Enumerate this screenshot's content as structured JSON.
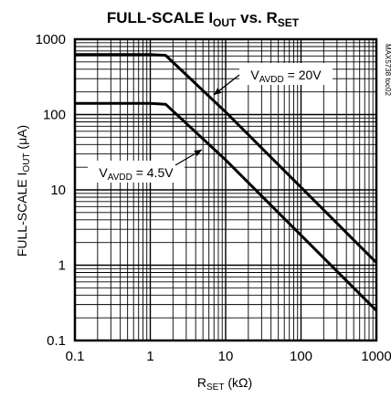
{
  "chart_data": {
    "type": "line",
    "title": {
      "main": "FULL-SCALE I",
      "main_sub": "OUT",
      "mid": " vs. R",
      "mid_sub": "SET"
    },
    "xlabel": {
      "main": "R",
      "sub": "SET",
      "rest": " (kΩ)"
    },
    "ylabel": {
      "main": "FULL-SCALE I",
      "sub": "OUT",
      "rest": " (μA)"
    },
    "x_scale": "log",
    "y_scale": "log",
    "xlim": [
      0.1,
      1000
    ],
    "ylim": [
      0.1,
      1000
    ],
    "x_ticks": [
      0.1,
      1,
      10,
      100,
      1000
    ],
    "x_tick_labels": [
      "0.1",
      "1",
      "10",
      "100",
      "1000"
    ],
    "y_ticks": [
      0.1,
      1,
      10,
      100,
      1000
    ],
    "y_tick_labels": [
      "0.1",
      "1",
      "10",
      "100",
      "1000"
    ],
    "grid": true,
    "series": [
      {
        "name": "VAVDD = 20V",
        "label": {
          "main": "V",
          "sub": "AVDD",
          "rest": " = 20V"
        },
        "x": [
          0.1,
          1.0,
          1.6,
          10,
          100,
          1000
        ],
        "y": [
          625,
          625,
          612,
          108,
          10.8,
          1.08
        ]
      },
      {
        "name": "VAVDD = 4.5V",
        "label": {
          "main": "V",
          "sub": "AVDD",
          "rest": " = 4.5V"
        },
        "x": [
          0.1,
          1.0,
          1.6,
          10,
          100,
          1000
        ],
        "y": [
          141,
          141,
          137,
          25,
          2.5,
          0.25
        ]
      }
    ],
    "figure_code": "MAX5738 toc02"
  }
}
